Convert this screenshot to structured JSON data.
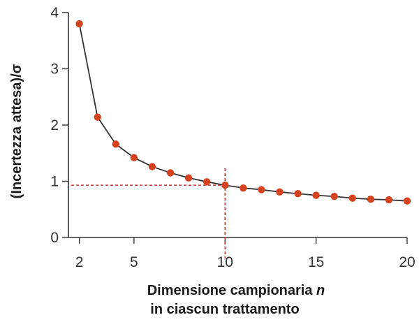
{
  "chart_data": {
    "type": "scatter",
    "title": "",
    "xlabel": "Dimensione campionaria",
    "xlabel_var": "n",
    "xlabel_line2": "in ciascun trattamento",
    "ylabel": "(Incertezza attesa)/σ",
    "xlim": [
      1.4,
      20
    ],
    "ylim": [
      0,
      4
    ],
    "x_ticks": [
      2,
      5,
      10,
      15,
      20
    ],
    "y_ticks": [
      0,
      1,
      2,
      3,
      4
    ],
    "x_tick_labels": [
      "2",
      "5",
      "10",
      "15",
      "20"
    ],
    "y_tick_labels": [
      "0",
      "1",
      "2",
      "3",
      "4"
    ],
    "grid": false,
    "series": [
      {
        "x": [
          2,
          3,
          4,
          5,
          6,
          7,
          8,
          9,
          10,
          11,
          12,
          13,
          14,
          15,
          16,
          17,
          18,
          19,
          20
        ],
        "y": [
          3.8,
          2.14,
          1.66,
          1.42,
          1.26,
          1.15,
          1.06,
          0.99,
          0.93,
          0.88,
          0.85,
          0.81,
          0.78,
          0.75,
          0.73,
          0.7,
          0.68,
          0.67,
          0.65
        ]
      }
    ],
    "reference_point": {
      "x": 10,
      "y": 0.93
    },
    "colors": {
      "marker": "#d4421f",
      "line": "#333333",
      "reference": "#c43a30",
      "axis": "#333333"
    }
  }
}
